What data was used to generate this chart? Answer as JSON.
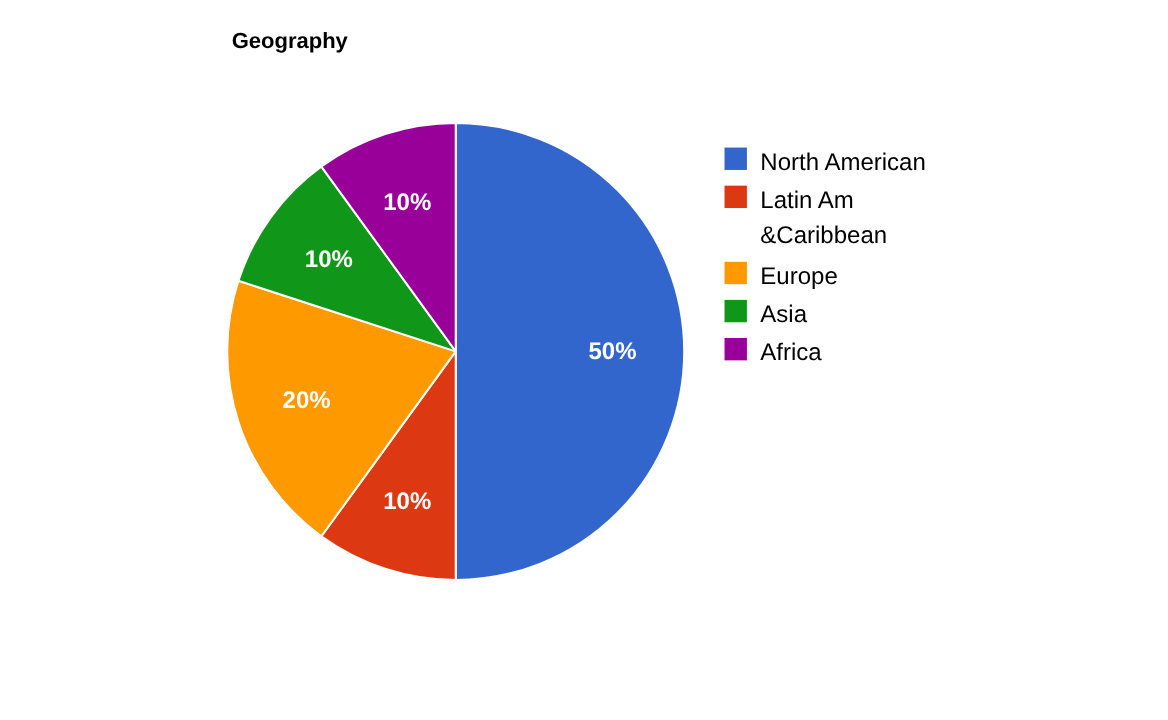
{
  "chart_data": {
    "type": "pie",
    "title": "Geography",
    "categories": [
      "North American",
      "Latin Am &Caribbean",
      "Europe",
      "Asia",
      "Africa"
    ],
    "values": [
      50,
      10,
      20,
      10,
      10
    ],
    "colors": [
      "#3366cc",
      "#dc3912",
      "#ff9900",
      "#109618",
      "#990099"
    ],
    "value_labels": [
      "50%",
      "10%",
      "20%",
      "10%",
      "10%"
    ],
    "legend": "right"
  }
}
